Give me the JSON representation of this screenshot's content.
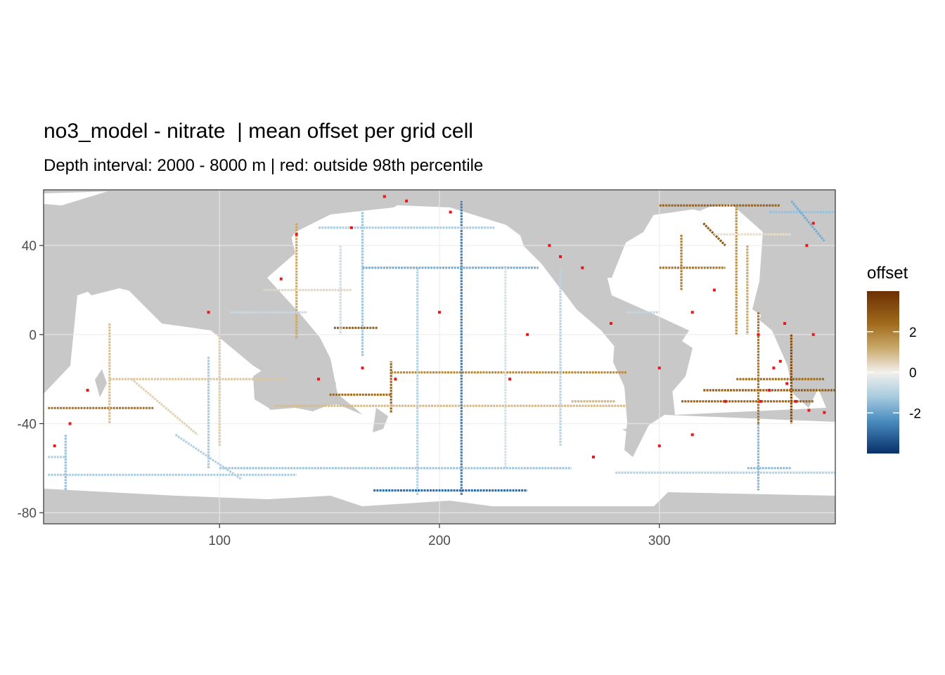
{
  "title": "no3_model - nitrate  | mean offset per grid cell",
  "subtitle": "Depth interval: 2000 - 8000 m | red: outside 98th percentile",
  "colors": {
    "land": "#c8c8c8",
    "ocean": "#ffffff",
    "grid": "#ebebeb",
    "outlier": "#e8191b",
    "scale_low": "#08306b",
    "scale_mid": "#f2f0ec",
    "scale_high": "#6b2f04"
  },
  "chart_data": {
    "type": "heatmap",
    "title": "no3_model - nitrate  | mean offset per grid cell",
    "subtitle": "Depth interval: 2000 - 8000 m | red: outside 98th percentile",
    "xlabel": "",
    "ylabel": "",
    "xlim": [
      20,
      380
    ],
    "ylim": [
      -85,
      65
    ],
    "x_ticks": [
      100,
      200,
      300
    ],
    "x_tick_labels": [
      "100",
      "200",
      "300"
    ],
    "y_ticks": [
      -80,
      -40,
      0,
      40
    ],
    "y_tick_labels": [
      "-80",
      "-40",
      "0",
      "40"
    ],
    "grid": true,
    "legend": {
      "title": "offset",
      "position": "right",
      "range": [
        -4,
        4
      ],
      "breaks": [
        2,
        0,
        -2
      ],
      "break_labels": [
        "2",
        "0",
        "-2"
      ]
    },
    "tracks": [
      {
        "from": [
          178,
          -35
        ],
        "to": [
          178,
          -12
        ],
        "value": 2.6
      },
      {
        "from": [
          178,
          -17
        ],
        "to": [
          285,
          -17
        ],
        "value": 1.8
      },
      {
        "from": [
          150,
          -27
        ],
        "to": [
          178,
          -27
        ],
        "value": 2.4
      },
      {
        "from": [
          125,
          -32
        ],
        "to": [
          285,
          -32
        ],
        "value": 0.9
      },
      {
        "from": [
          22,
          -33
        ],
        "to": [
          70,
          -33
        ],
        "value": 2.2
      },
      {
        "from": [
          50,
          -20
        ],
        "to": [
          130,
          -20
        ],
        "value": 0.7
      },
      {
        "from": [
          210,
          -72
        ],
        "to": [
          210,
          60
        ],
        "value": -2.6
      },
      {
        "from": [
          165,
          55
        ],
        "to": [
          165,
          -10
        ],
        "value": -1.3
      },
      {
        "from": [
          135,
          50
        ],
        "to": [
          135,
          -2
        ],
        "value": 1.2
      },
      {
        "from": [
          152,
          3
        ],
        "to": [
          172,
          3
        ],
        "value": 2.6
      },
      {
        "from": [
          165,
          30
        ],
        "to": [
          245,
          30
        ],
        "value": -1.8
      },
      {
        "from": [
          145,
          48
        ],
        "to": [
          225,
          48
        ],
        "value": -1.2
      },
      {
        "from": [
          255,
          -50
        ],
        "to": [
          255,
          30
        ],
        "value": -0.9
      },
      {
        "from": [
          190,
          -72
        ],
        "to": [
          190,
          30
        ],
        "value": -1.0
      },
      {
        "from": [
          230,
          30
        ],
        "to": [
          230,
          -60
        ],
        "value": -0.5
      },
      {
        "from": [
          170,
          -70
        ],
        "to": [
          240,
          -70
        ],
        "value": -3.0
      },
      {
        "from": [
          100,
          -60
        ],
        "to": [
          260,
          -60
        ],
        "value": -1.3
      },
      {
        "from": [
          22,
          -55
        ],
        "to": [
          30,
          -55
        ],
        "value": -1.0
      },
      {
        "from": [
          30,
          -45
        ],
        "to": [
          30,
          -70
        ],
        "value": -1.4
      },
      {
        "from": [
          22,
          -63
        ],
        "to": [
          135,
          -63
        ],
        "value": -1.1
      },
      {
        "from": [
          95,
          -10
        ],
        "to": [
          95,
          -60
        ],
        "value": -1.2
      },
      {
        "from": [
          80,
          -45
        ],
        "to": [
          110,
          -65
        ],
        "value": -1.0
      },
      {
        "from": [
          50,
          5
        ],
        "to": [
          50,
          -40
        ],
        "value": 0.8
      },
      {
        "from": [
          100,
          0
        ],
        "to": [
          100,
          -50
        ],
        "value": 0.6
      },
      {
        "from": [
          60,
          -20
        ],
        "to": [
          90,
          -45
        ],
        "value": 0.5
      },
      {
        "from": [
          260,
          -30
        ],
        "to": [
          280,
          -30
        ],
        "value": 1.0
      },
      {
        "from": [
          280,
          -62
        ],
        "to": [
          380,
          -62
        ],
        "value": -1.0
      },
      {
        "from": [
          340,
          -60
        ],
        "to": [
          360,
          -60
        ],
        "value": -1.5
      },
      {
        "from": [
          345,
          -40
        ],
        "to": [
          345,
          -70
        ],
        "value": -1.6
      },
      {
        "from": [
          310,
          -30
        ],
        "to": [
          370,
          -30
        ],
        "value": 2.6
      },
      {
        "from": [
          320,
          -25
        ],
        "to": [
          380,
          -25
        ],
        "value": 2.8
      },
      {
        "from": [
          335,
          -20
        ],
        "to": [
          375,
          -20
        ],
        "value": 2.4
      },
      {
        "from": [
          345,
          10
        ],
        "to": [
          345,
          -40
        ],
        "value": 2.2
      },
      {
        "from": [
          360,
          0
        ],
        "to": [
          360,
          -40
        ],
        "value": 3.2
      },
      {
        "from": [
          300,
          30
        ],
        "to": [
          330,
          30
        ],
        "value": 2.2
      },
      {
        "from": [
          310,
          20
        ],
        "to": [
          310,
          45
        ],
        "value": 2.0
      },
      {
        "from": [
          300,
          58
        ],
        "to": [
          355,
          58
        ],
        "value": 2.6
      },
      {
        "from": [
          320,
          50
        ],
        "to": [
          330,
          40
        ],
        "value": 2.8
      },
      {
        "from": [
          335,
          58
        ],
        "to": [
          335,
          0
        ],
        "value": 1.6
      },
      {
        "from": [
          340,
          40
        ],
        "to": [
          340,
          0
        ],
        "value": 1.2
      },
      {
        "from": [
          325,
          45
        ],
        "to": [
          360,
          45
        ],
        "value": 0.3
      },
      {
        "from": [
          350,
          55
        ],
        "to": [
          380,
          55
        ],
        "value": -1.4
      },
      {
        "from": [
          360,
          60
        ],
        "to": [
          375,
          42
        ],
        "value": -1.8
      },
      {
        "from": [
          285,
          10
        ],
        "to": [
          300,
          10
        ],
        "value": -0.8
      },
      {
        "from": [
          155,
          40
        ],
        "to": [
          155,
          0
        ],
        "value": -0.6
      },
      {
        "from": [
          105,
          10
        ],
        "to": [
          140,
          10
        ],
        "value": -0.7
      },
      {
        "from": [
          120,
          20
        ],
        "to": [
          160,
          20
        ],
        "value": 0.4
      }
    ],
    "outliers": [
      [
        355,
        -12
      ],
      [
        358,
        -22
      ],
      [
        362,
        -30
      ],
      [
        350,
        -25
      ],
      [
        352,
        -15
      ],
      [
        346,
        -30
      ],
      [
        368,
        -34
      ],
      [
        375,
        -35
      ],
      [
        345,
        0
      ],
      [
        357,
        5
      ],
      [
        370,
        0
      ],
      [
        330,
        -30
      ],
      [
        300,
        -50
      ],
      [
        315,
        -45
      ],
      [
        315,
        10
      ],
      [
        325,
        20
      ],
      [
        250,
        40
      ],
      [
        255,
        35
      ],
      [
        265,
        30
      ],
      [
        278,
        5
      ],
      [
        270,
        -55
      ],
      [
        240,
        0
      ],
      [
        200,
        10
      ],
      [
        180,
        -20
      ],
      [
        165,
        -15
      ],
      [
        145,
        -20
      ],
      [
        135,
        45
      ],
      [
        128,
        25
      ],
      [
        175,
        62
      ],
      [
        160,
        48
      ],
      [
        205,
        55
      ],
      [
        185,
        60
      ],
      [
        367,
        40
      ],
      [
        370,
        50
      ],
      [
        25,
        -50
      ],
      [
        32,
        -40
      ],
      [
        95,
        10
      ],
      [
        40,
        -25
      ],
      [
        232,
        -20
      ],
      [
        300,
        -15
      ]
    ]
  }
}
